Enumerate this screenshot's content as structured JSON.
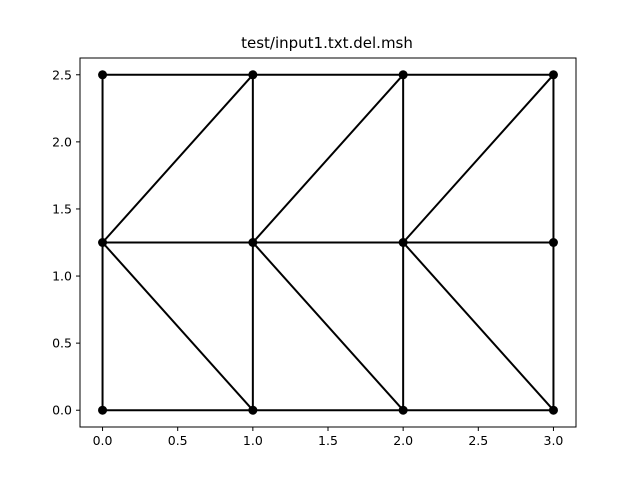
{
  "chart_data": {
    "type": "line",
    "title": "test/input1.txt.del.msh",
    "xlabel": "",
    "ylabel": "",
    "xlim": [
      -0.15,
      3.15
    ],
    "ylim": [
      -0.125,
      2.625
    ],
    "x_ticks": [
      0.0,
      0.5,
      1.0,
      1.5,
      2.0,
      2.5,
      3.0
    ],
    "x_tick_labels": [
      "0.0",
      "0.5",
      "1.0",
      "1.5",
      "2.0",
      "2.5",
      "3.0"
    ],
    "y_ticks": [
      0.0,
      0.5,
      1.0,
      1.5,
      2.0,
      2.5
    ],
    "y_tick_labels": [
      "0.0",
      "0.5",
      "1.0",
      "1.5",
      "2.0",
      "2.5"
    ],
    "grid": false,
    "line_color": "#000000",
    "marker": "circle",
    "nodes": [
      [
        0,
        0
      ],
      [
        1,
        0
      ],
      [
        2,
        0
      ],
      [
        3,
        0
      ],
      [
        0,
        1.25
      ],
      [
        1,
        1.25
      ],
      [
        2,
        1.25
      ],
      [
        3,
        1.25
      ],
      [
        0,
        2.5
      ],
      [
        1,
        2.5
      ],
      [
        2,
        2.5
      ],
      [
        3,
        2.5
      ]
    ],
    "edges": [
      [
        [
          0,
          0
        ],
        [
          1,
          0
        ]
      ],
      [
        [
          1,
          0
        ],
        [
          2,
          0
        ]
      ],
      [
        [
          2,
          0
        ],
        [
          3,
          0
        ]
      ],
      [
        [
          0,
          1.25
        ],
        [
          1,
          1.25
        ]
      ],
      [
        [
          1,
          1.25
        ],
        [
          2,
          1.25
        ]
      ],
      [
        [
          2,
          1.25
        ],
        [
          3,
          1.25
        ]
      ],
      [
        [
          0,
          2.5
        ],
        [
          1,
          2.5
        ]
      ],
      [
        [
          1,
          2.5
        ],
        [
          2,
          2.5
        ]
      ],
      [
        [
          2,
          2.5
        ],
        [
          3,
          2.5
        ]
      ],
      [
        [
          0,
          0
        ],
        [
          0,
          1.25
        ]
      ],
      [
        [
          0,
          1.25
        ],
        [
          0,
          2.5
        ]
      ],
      [
        [
          1,
          0
        ],
        [
          1,
          1.25
        ]
      ],
      [
        [
          1,
          1.25
        ],
        [
          1,
          2.5
        ]
      ],
      [
        [
          2,
          0
        ],
        [
          2,
          1.25
        ]
      ],
      [
        [
          2,
          1.25
        ],
        [
          2,
          2.5
        ]
      ],
      [
        [
          3,
          0
        ],
        [
          3,
          1.25
        ]
      ],
      [
        [
          3,
          1.25
        ],
        [
          3,
          2.5
        ]
      ],
      [
        [
          0,
          1.25
        ],
        [
          1,
          0
        ]
      ],
      [
        [
          1,
          1.25
        ],
        [
          2,
          0
        ]
      ],
      [
        [
          2,
          1.25
        ],
        [
          3,
          0
        ]
      ],
      [
        [
          0,
          1.25
        ],
        [
          1,
          2.5
        ]
      ],
      [
        [
          1,
          1.25
        ],
        [
          2,
          2.5
        ]
      ],
      [
        [
          2,
          1.25
        ],
        [
          3,
          2.5
        ]
      ]
    ]
  }
}
